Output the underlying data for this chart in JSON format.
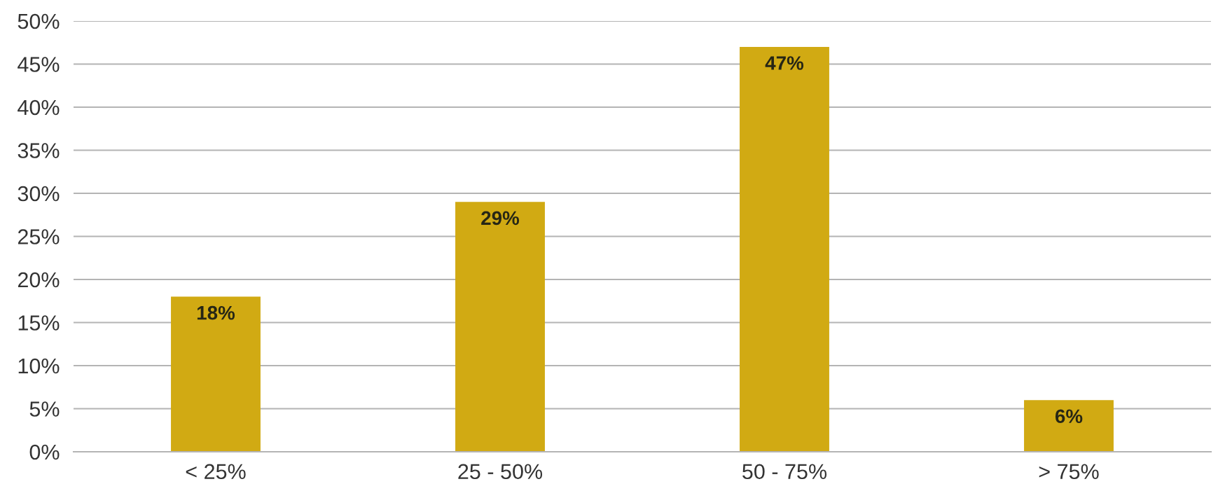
{
  "chart_data": {
    "type": "bar",
    "categories": [
      "< 25%",
      "25 - 50%",
      "50 - 75%",
      "> 75%"
    ],
    "values": [
      18,
      29,
      47,
      6
    ],
    "value_labels": [
      "18%",
      "29%",
      "47%",
      "6%"
    ],
    "color": "#d1aa13",
    "ylim": [
      0,
      50
    ],
    "yticks": [
      {
        "value": 0,
        "label": "0%"
      },
      {
        "value": 5,
        "label": "5%"
      },
      {
        "value": 10,
        "label": "10%"
      },
      {
        "value": 15,
        "label": "15%"
      },
      {
        "value": 20,
        "label": "20%"
      },
      {
        "value": 25,
        "label": "25%"
      },
      {
        "value": 30,
        "label": "30%"
      },
      {
        "value": 35,
        "label": "35%"
      },
      {
        "value": 40,
        "label": "40%"
      },
      {
        "value": 45,
        "label": "45%"
      },
      {
        "value": 50,
        "label": "50%"
      }
    ],
    "grid": "y",
    "legend": false
  }
}
